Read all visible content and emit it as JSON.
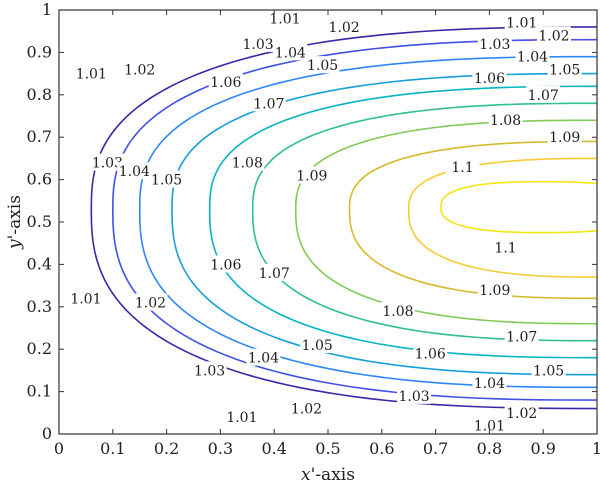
{
  "chart_data": {
    "type": "contour",
    "title": "",
    "xlabel_var": "x'",
    "xlabel_suffix": "-axis",
    "ylabel_var": "y'",
    "ylabel_suffix": "-axis",
    "xlim": [
      0,
      1
    ],
    "ylim": [
      0,
      1
    ],
    "xticks": [
      "0",
      "0.1",
      "0.2",
      "0.3",
      "0.4",
      "0.5",
      "0.6",
      "0.7",
      "0.8",
      "0.9",
      "1"
    ],
    "yticks": [
      "0",
      "0.1",
      "0.2",
      "0.3",
      "0.4",
      "0.5",
      "0.6",
      "0.7",
      "0.8",
      "0.9",
      "1"
    ],
    "grid": false,
    "legend": "none",
    "colormap": "parula",
    "levels": [
      {
        "value": "1.01",
        "color": "#3e26a8",
        "cx": 1.0,
        "cy": 0.53,
        "rx": 0.94,
        "ryTop": 0.43,
        "ryBot": 0.47,
        "labels": [
          [
            0.06,
            0.85
          ],
          [
            0.42,
            0.98
          ],
          [
            0.86,
            0.97
          ],
          [
            0.05,
            0.32
          ],
          [
            0.34,
            0.04
          ],
          [
            0.8,
            0.02
          ]
        ]
      },
      {
        "value": "1.02",
        "color": "#4150e5",
        "cx": 1.0,
        "cy": 0.53,
        "rx": 0.9,
        "ryTop": 0.4,
        "ryBot": 0.45,
        "labels": [
          [
            0.15,
            0.86
          ],
          [
            0.53,
            0.96
          ],
          [
            0.92,
            0.94
          ],
          [
            0.17,
            0.31
          ],
          [
            0.46,
            0.06
          ],
          [
            0.86,
            0.05
          ]
        ]
      },
      {
        "value": "1.03",
        "color": "#2e87f7",
        "cx": 1.0,
        "cy": 0.53,
        "rx": 0.85,
        "ryTop": 0.36,
        "ryBot": 0.42,
        "labels": [
          [
            0.09,
            0.64
          ],
          [
            0.37,
            0.92
          ],
          [
            0.81,
            0.92
          ],
          [
            0.28,
            0.15
          ],
          [
            0.66,
            0.09
          ]
        ]
      },
      {
        "value": "1.04",
        "color": "#149fd8",
        "cx": 1.0,
        "cy": 0.53,
        "rx": 0.79,
        "ryTop": 0.32,
        "ryBot": 0.39,
        "labels": [
          [
            0.14,
            0.62
          ],
          [
            0.43,
            0.9
          ],
          [
            0.88,
            0.89
          ],
          [
            0.38,
            0.18
          ],
          [
            0.8,
            0.12
          ]
        ]
      },
      {
        "value": "1.05",
        "color": "#06b5c0",
        "cx": 1.0,
        "cy": 0.53,
        "rx": 0.72,
        "ryTop": 0.29,
        "ryBot": 0.35,
        "labels": [
          [
            0.2,
            0.6
          ],
          [
            0.49,
            0.87
          ],
          [
            0.94,
            0.86
          ],
          [
            0.48,
            0.21
          ],
          [
            0.91,
            0.15
          ]
        ]
      },
      {
        "value": "1.06",
        "color": "#2fc08f",
        "cx": 1.0,
        "cy": 0.53,
        "rx": 0.64,
        "ryTop": 0.25,
        "ryBot": 0.31,
        "labels": [
          [
            0.31,
            0.83
          ],
          [
            0.8,
            0.84
          ],
          [
            0.31,
            0.4
          ],
          [
            0.69,
            0.19
          ]
        ]
      },
      {
        "value": "1.07",
        "color": "#81cb57",
        "cx": 1.0,
        "cy": 0.53,
        "rx": 0.56,
        "ryTop": 0.21,
        "ryBot": 0.27,
        "labels": [
          [
            0.39,
            0.78
          ],
          [
            0.9,
            0.8
          ],
          [
            0.4,
            0.38
          ],
          [
            0.86,
            0.23
          ]
        ]
      },
      {
        "value": "1.08",
        "color": "#d4bb2b",
        "cx": 1.0,
        "cy": 0.53,
        "rx": 0.46,
        "ryTop": 0.16,
        "ryBot": 0.21,
        "labels": [
          [
            0.83,
            0.74
          ],
          [
            0.35,
            0.64
          ],
          [
            0.63,
            0.29
          ]
        ]
      },
      {
        "value": "1.09",
        "color": "#f7cb34",
        "cx": 1.0,
        "cy": 0.53,
        "rx": 0.35,
        "ryTop": 0.12,
        "ryBot": 0.16,
        "labels": [
          [
            0.94,
            0.7
          ],
          [
            0.47,
            0.61
          ],
          [
            0.81,
            0.34
          ]
        ]
      },
      {
        "value": "1.1",
        "color": "#f2e616",
        "cx": 0.9,
        "cy": 0.535,
        "rx": 0.19,
        "ryTop": 0.06,
        "ryBot": 0.06,
        "labels": [
          [
            0.75,
            0.63
          ],
          [
            0.83,
            0.44
          ]
        ]
      }
    ]
  }
}
